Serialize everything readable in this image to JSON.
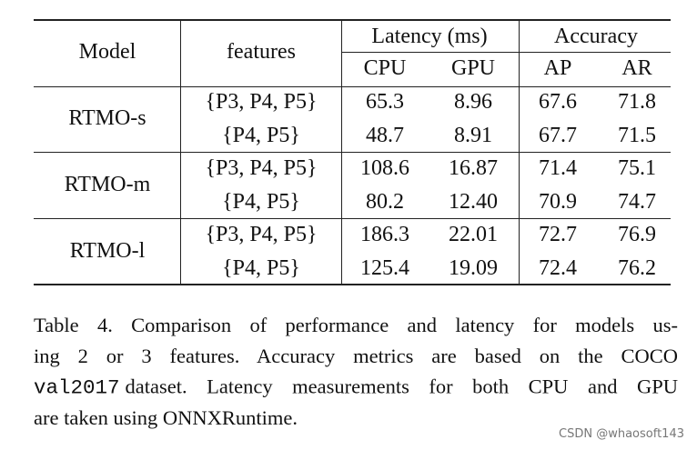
{
  "table": {
    "header": {
      "model": "Model",
      "features": "features",
      "latency": "Latency (ms)",
      "accuracy": "Accuracy",
      "cpu": "CPU",
      "gpu": "GPU",
      "ap": "AP",
      "ar": "AR"
    },
    "groups": [
      {
        "model": "RTMO-s",
        "rows": [
          [
            "{P3, P4, P5}",
            "65.3",
            "8.96",
            "67.6",
            "71.8"
          ],
          [
            "{P4, P5}",
            "48.7",
            "8.91",
            "67.7",
            "71.5"
          ]
        ]
      },
      {
        "model": "RTMO-m",
        "rows": [
          [
            "{P3, P4, P5}",
            "108.6",
            "16.87",
            "71.4",
            "75.1"
          ],
          [
            "{P4, P5}",
            "80.2",
            "12.40",
            "70.9",
            "74.7"
          ]
        ]
      },
      {
        "model": "RTMO-l",
        "rows": [
          [
            "{P3, P4, P5}",
            "186.3",
            "22.01",
            "72.7",
            "76.9"
          ],
          [
            "{P4, P5}",
            "125.4",
            "19.09",
            "72.4",
            "76.2"
          ]
        ]
      }
    ]
  },
  "caption": {
    "lines": [
      "Table 4.  Comparison of performance and latency for models us-",
      "ing 2 or 3 features.  Accuracy metrics are based on the COCO",
      {
        "code": "val2017",
        "text": "dataset. Latency measurements for both CPU and GPU"
      },
      "are taken using ONNXRuntime."
    ]
  },
  "watermark": "CSDN @whaosoft143"
}
